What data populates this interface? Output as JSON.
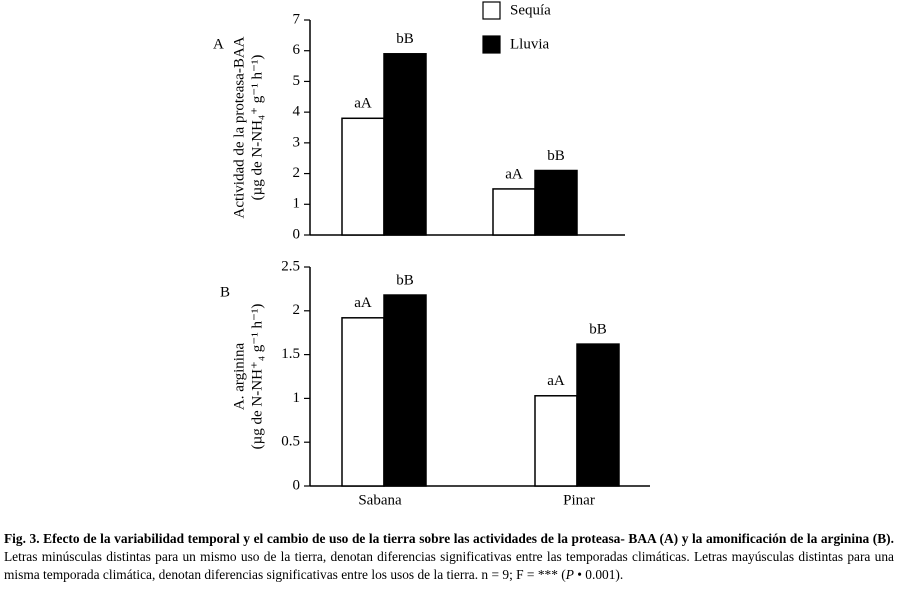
{
  "chart_data": [
    {
      "type": "bar",
      "panel": "A",
      "ylabel": "Actividad de la proteasa-BAA",
      "ylabel_units": "(µg de N-NH₄⁺ g⁻¹ h⁻¹)",
      "categories": [
        null,
        null
      ],
      "series": [
        {
          "name": "Sequía",
          "color": "#ffffff",
          "values": [
            3.8,
            1.5
          ],
          "letters": [
            "aA",
            "aA"
          ]
        },
        {
          "name": "Lluvia",
          "color": "#000000",
          "values": [
            5.9,
            2.1
          ],
          "letters": [
            "bB",
            "bB"
          ]
        }
      ],
      "ylim": [
        0,
        7
      ],
      "yticks": [
        0,
        1,
        2,
        3,
        4,
        5,
        6,
        7
      ]
    },
    {
      "type": "bar",
      "panel": "B",
      "ylabel": "A. arginina",
      "ylabel_units": "(µg de N-NH⁺₄ g⁻¹ h⁻¹)",
      "categories": [
        "Sabana",
        "Pinar"
      ],
      "series": [
        {
          "color": "#ffffff",
          "values": [
            1.92,
            1.03
          ],
          "letters": [
            "aA",
            "aA"
          ]
        },
        {
          "color": "#000000",
          "values": [
            2.18,
            1.62
          ],
          "letters": [
            "bB",
            "bB"
          ]
        }
      ],
      "ylim": [
        0,
        2.5
      ],
      "yticks": [
        0,
        0.5,
        1,
        1.5,
        2,
        2.5
      ]
    }
  ],
  "caption": {
    "bold": "Fig. 3. Efecto de la variabilidad temporal y el cambio de uso de la tierra sobre las actividades de la proteasa- BAA (A) y la amonificación de la arginina (B).",
    "text": " Letras minúsculas distintas para un mismo uso de la tierra, denotan diferencias significativas entre las temporadas climáticas. Letras mayúsculas distintas  para una misma temporada climática, denotan diferencias significativas entre los usos de la tierra. n = 9; F = *** (",
    "italic": "P",
    "end": " •   0.001)."
  }
}
